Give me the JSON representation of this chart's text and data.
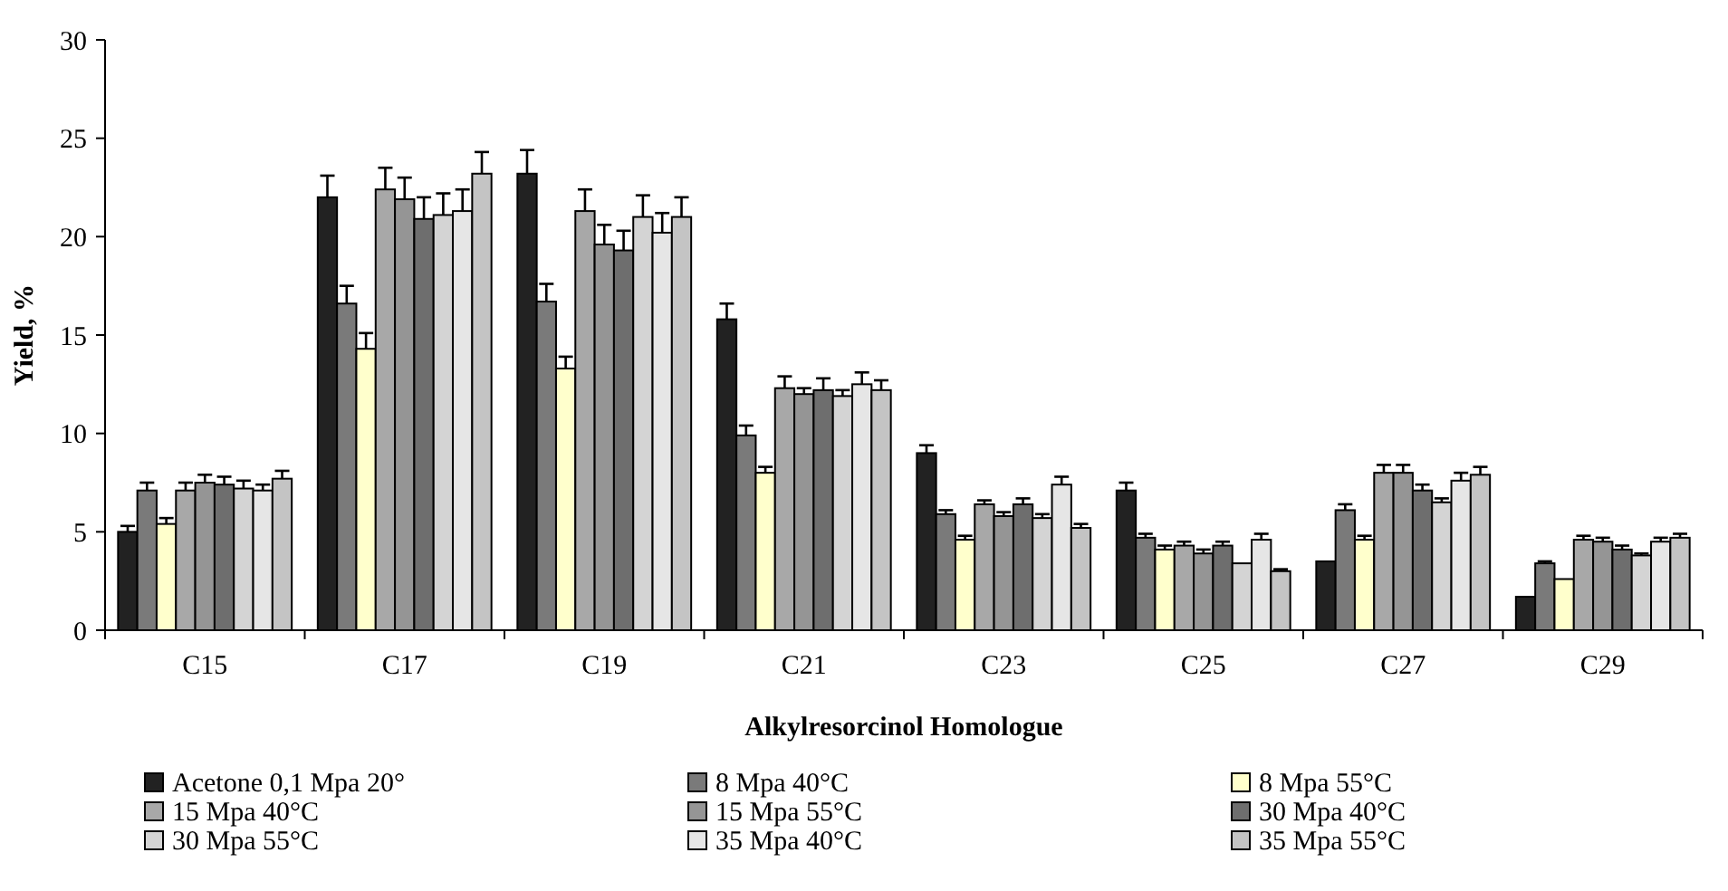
{
  "chart_data": {
    "type": "bar",
    "xlabel": "Alkylresorcinol Homologue",
    "ylabel": "Yield, %",
    "categories": [
      "C15",
      "C17",
      "C19",
      "C21",
      "C23",
      "C25",
      "C27",
      "C29"
    ],
    "ylim": [
      0,
      30
    ],
    "yticks": [
      0,
      5,
      10,
      15,
      20,
      25,
      30
    ],
    "grid": false,
    "legend": "bottom",
    "series": [
      {
        "name": "Acetone 0,1 Mpa 20°",
        "color": "#222222",
        "values": [
          5.0,
          22.0,
          23.2,
          15.8,
          9.0,
          7.1,
          3.5,
          1.7
        ],
        "errors": [
          0.3,
          1.1,
          1.2,
          0.8,
          0.4,
          0.4,
          null,
          null
        ]
      },
      {
        "name": "8 Mpa 40°C",
        "color": "#7a7a7a",
        "values": [
          7.1,
          16.6,
          16.7,
          9.9,
          5.9,
          4.7,
          6.1,
          3.4
        ],
        "errors": [
          0.4,
          0.9,
          0.9,
          0.5,
          0.2,
          0.2,
          0.3,
          0.1
        ]
      },
      {
        "name": "8 Mpa 55°C",
        "color": "#ffffcc",
        "values": [
          5.4,
          14.3,
          13.3,
          8.0,
          4.6,
          4.1,
          4.6,
          2.6
        ],
        "errors": [
          0.3,
          0.8,
          0.6,
          0.3,
          0.2,
          0.2,
          0.2,
          null
        ]
      },
      {
        "name": "15 Mpa 40°C",
        "color": "#a8a8a8",
        "values": [
          7.1,
          22.4,
          21.3,
          12.3,
          6.4,
          4.3,
          8.0,
          4.6
        ],
        "errors": [
          0.4,
          1.1,
          1.1,
          0.6,
          0.2,
          0.2,
          0.4,
          0.2
        ]
      },
      {
        "name": "15 Mpa 55°C",
        "color": "#959595",
        "values": [
          7.5,
          21.9,
          19.6,
          12.0,
          5.8,
          3.9,
          8.0,
          4.5
        ],
        "errors": [
          0.4,
          1.1,
          1.0,
          0.3,
          0.2,
          0.2,
          0.4,
          0.2
        ]
      },
      {
        "name": "30 Mpa 40°C",
        "color": "#6e6e6e",
        "values": [
          7.4,
          20.9,
          19.3,
          12.2,
          6.4,
          4.3,
          7.1,
          4.1
        ],
        "errors": [
          0.4,
          1.1,
          1.0,
          0.6,
          0.3,
          0.2,
          0.3,
          0.2
        ]
      },
      {
        "name": "30 Mpa 55°C",
        "color": "#d4d4d4",
        "values": [
          7.2,
          21.1,
          21.0,
          11.9,
          5.7,
          3.4,
          6.5,
          3.8
        ],
        "errors": [
          0.4,
          1.1,
          1.1,
          0.3,
          0.2,
          null,
          0.2,
          0.1
        ]
      },
      {
        "name": "35 Mpa 40°C",
        "color": "#e6e6e6",
        "values": [
          7.1,
          21.3,
          20.2,
          12.5,
          7.4,
          4.6,
          7.6,
          4.5
        ],
        "errors": [
          0.3,
          1.1,
          1.0,
          0.6,
          0.4,
          0.3,
          0.4,
          0.2
        ]
      },
      {
        "name": "35 Mpa 55°C",
        "color": "#c4c4c4",
        "values": [
          7.7,
          23.2,
          21.0,
          12.2,
          5.2,
          3.0,
          7.9,
          4.7
        ],
        "errors": [
          0.4,
          1.1,
          1.0,
          0.5,
          0.2,
          0.1,
          0.4,
          0.2
        ]
      }
    ]
  }
}
